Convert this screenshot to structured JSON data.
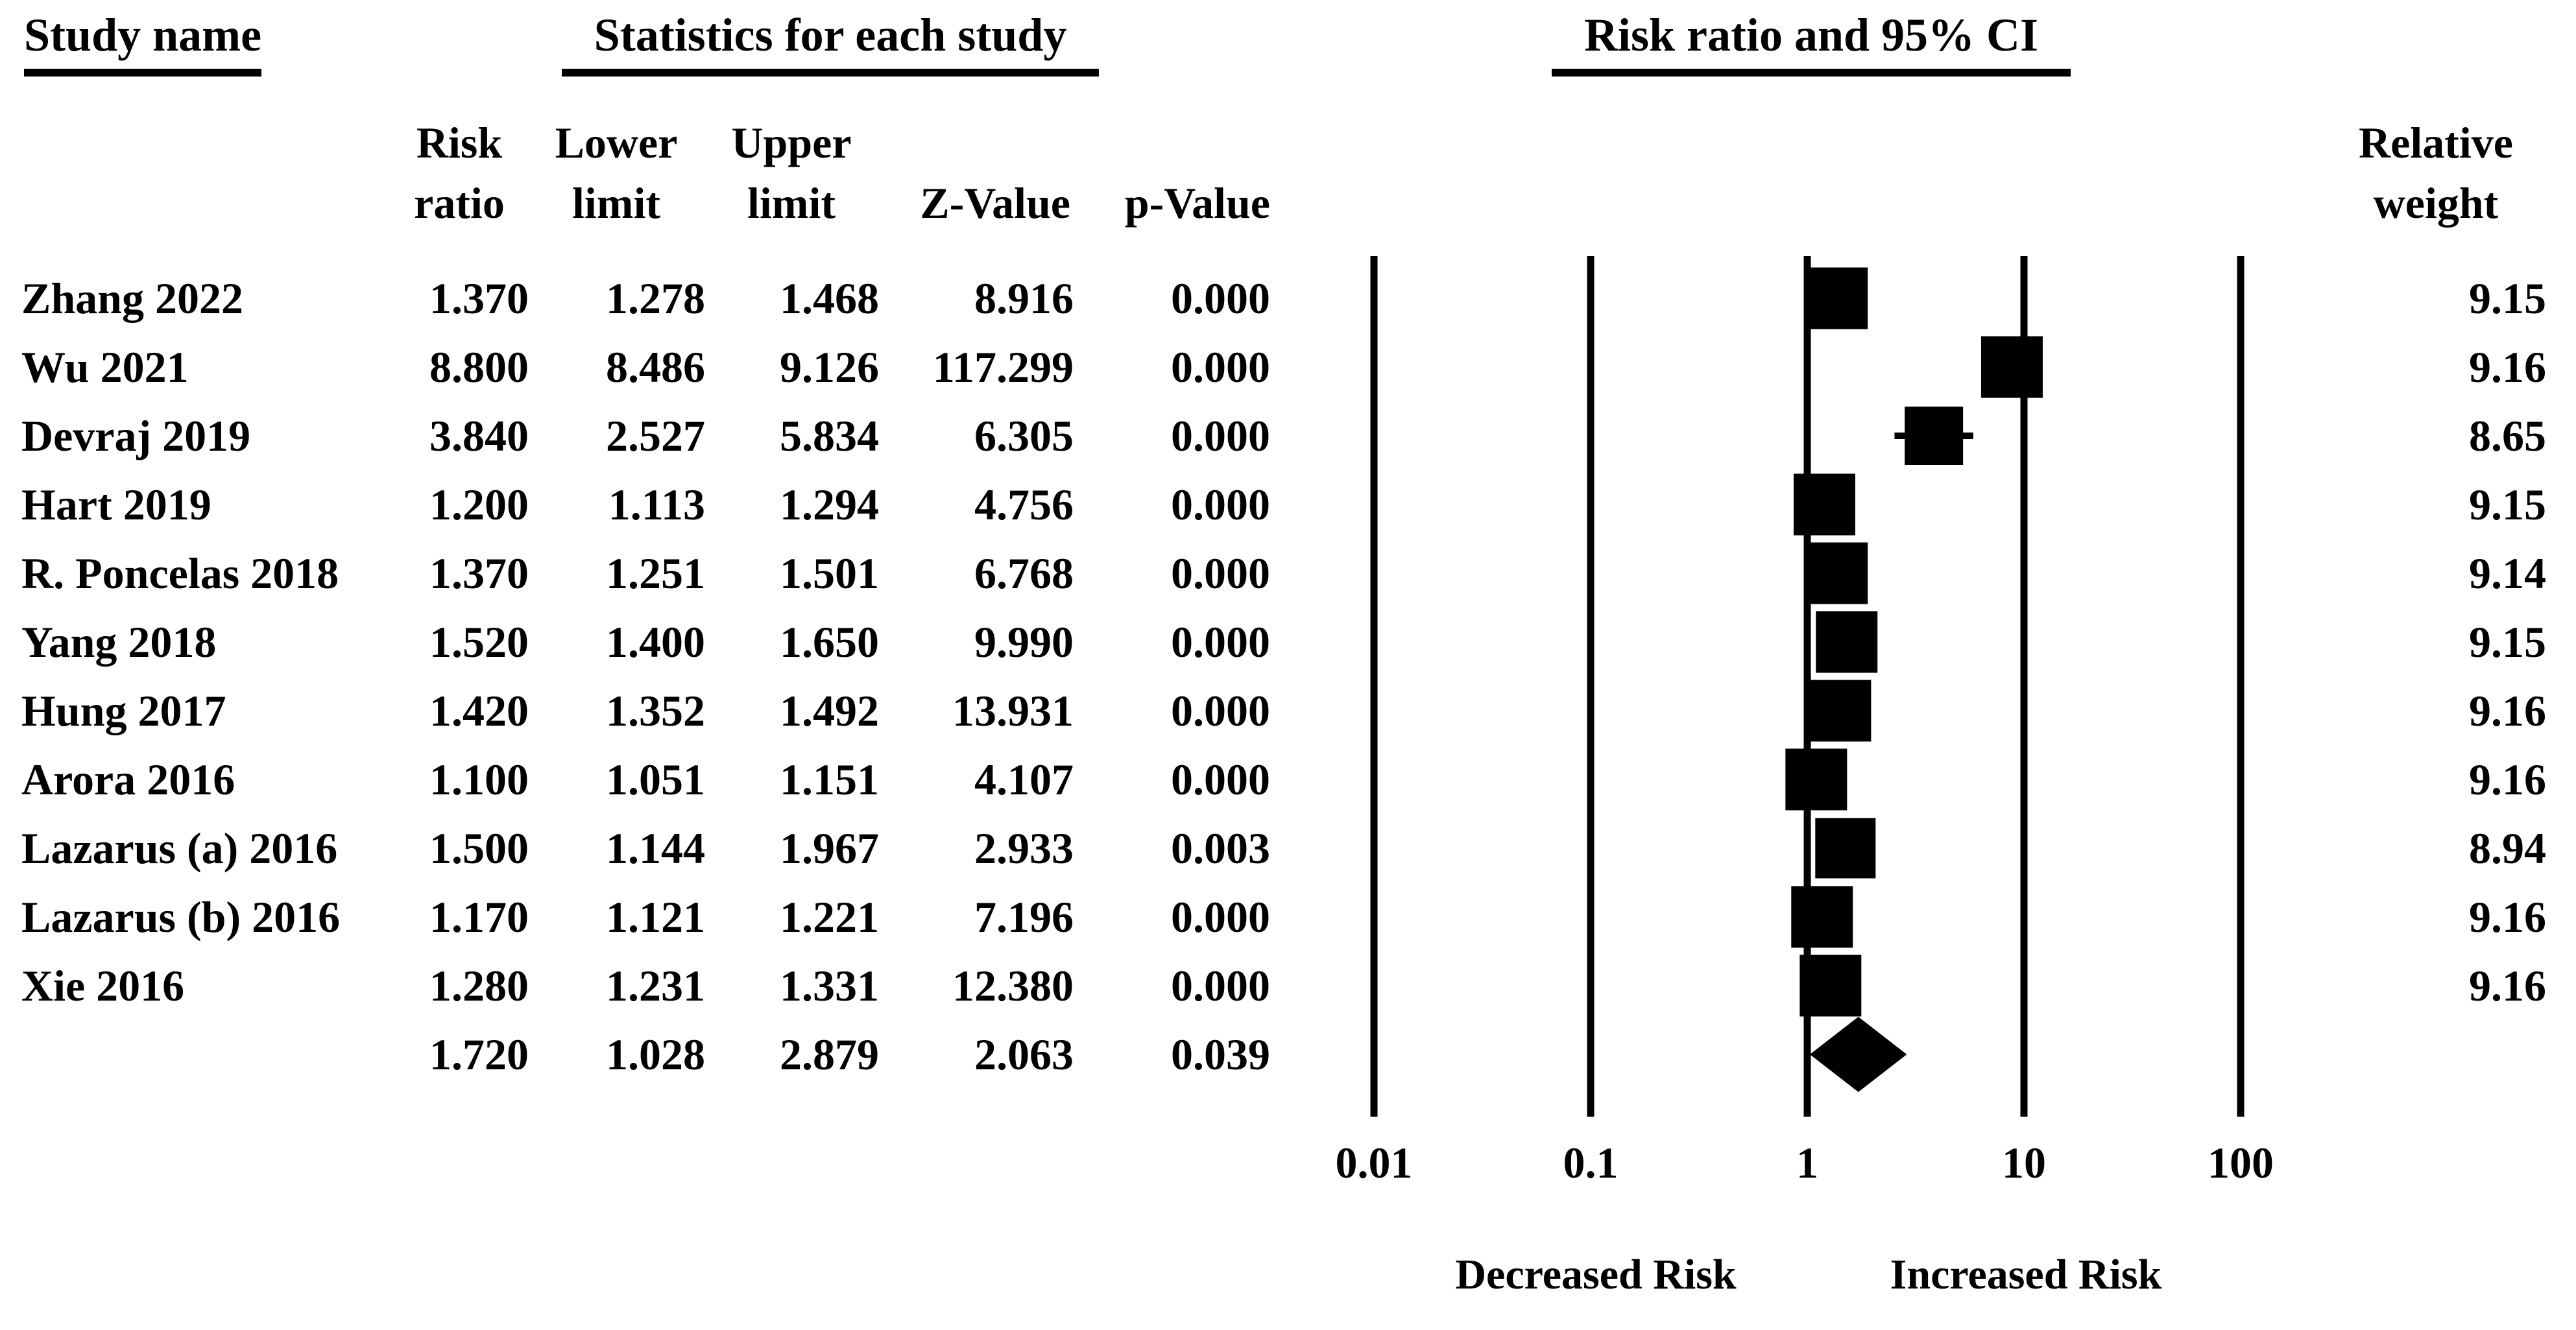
{
  "page": {
    "background": "#ffffff",
    "text_color": "#000000"
  },
  "headers": {
    "study_name": "Study name",
    "statistics": "Statistics for each study",
    "risk_ratio_ci": "Risk ratio and 95% CI",
    "relative_weight": "Relative\nweight"
  },
  "columns": {
    "risk_ratio": "Risk\nratio",
    "lower_limit": "Lower\nlimit",
    "upper_limit": "Upper\nlimit",
    "z_value": "Z-Value",
    "p_value": "p-Value"
  },
  "chart_data": {
    "type": "forest",
    "title": "Risk ratio and 95% CI",
    "x_axis": {
      "scale": "log10",
      "range": [
        0.01,
        100
      ],
      "ticks": [
        "0.01",
        "0.1",
        "1",
        "10",
        "100"
      ]
    },
    "x_axis_captions": {
      "left": "Decreased Risk",
      "right": "Increased Risk"
    },
    "marker_color": "#000000",
    "studies": [
      {
        "name": "Zhang 2022",
        "risk_ratio": "1.370",
        "lower_limit": "1.278",
        "upper_limit": "1.468",
        "z_value": "8.916",
        "p_value": "0.000",
        "relative_weight": "9.15"
      },
      {
        "name": "Wu 2021",
        "risk_ratio": "8.800",
        "lower_limit": "8.486",
        "upper_limit": "9.126",
        "z_value": "117.299",
        "p_value": "0.000",
        "relative_weight": "9.16"
      },
      {
        "name": "Devraj 2019",
        "risk_ratio": "3.840",
        "lower_limit": "2.527",
        "upper_limit": "5.834",
        "z_value": "6.305",
        "p_value": "0.000",
        "relative_weight": "8.65"
      },
      {
        "name": "Hart 2019",
        "risk_ratio": "1.200",
        "lower_limit": "1.113",
        "upper_limit": "1.294",
        "z_value": "4.756",
        "p_value": "0.000",
        "relative_weight": "9.15"
      },
      {
        "name": "R. Poncelas 2018",
        "risk_ratio": "1.370",
        "lower_limit": "1.251",
        "upper_limit": "1.501",
        "z_value": "6.768",
        "p_value": "0.000",
        "relative_weight": "9.14"
      },
      {
        "name": "Yang 2018",
        "risk_ratio": "1.520",
        "lower_limit": "1.400",
        "upper_limit": "1.650",
        "z_value": "9.990",
        "p_value": "0.000",
        "relative_weight": "9.15"
      },
      {
        "name": "Hung 2017",
        "risk_ratio": "1.420",
        "lower_limit": "1.352",
        "upper_limit": "1.492",
        "z_value": "13.931",
        "p_value": "0.000",
        "relative_weight": "9.16"
      },
      {
        "name": "Arora 2016",
        "risk_ratio": "1.100",
        "lower_limit": "1.051",
        "upper_limit": "1.151",
        "z_value": "4.107",
        "p_value": "0.000",
        "relative_weight": "9.16"
      },
      {
        "name": "Lazarus (a) 2016",
        "risk_ratio": "1.500",
        "lower_limit": "1.144",
        "upper_limit": "1.967",
        "z_value": "2.933",
        "p_value": "0.003",
        "relative_weight": "8.94"
      },
      {
        "name": "Lazarus (b) 2016",
        "risk_ratio": "1.170",
        "lower_limit": "1.121",
        "upper_limit": "1.221",
        "z_value": "7.196",
        "p_value": "0.000",
        "relative_weight": "9.16"
      },
      {
        "name": "Xie 2016",
        "risk_ratio": "1.280",
        "lower_limit": "1.231",
        "upper_limit": "1.331",
        "z_value": "12.380",
        "p_value": "0.000",
        "relative_weight": "9.16"
      }
    ],
    "overall": {
      "name": "",
      "risk_ratio": "1.720",
      "lower_limit": "1.028",
      "upper_limit": "2.879",
      "z_value": "2.063",
      "p_value": "0.039",
      "relative_weight": ""
    }
  }
}
